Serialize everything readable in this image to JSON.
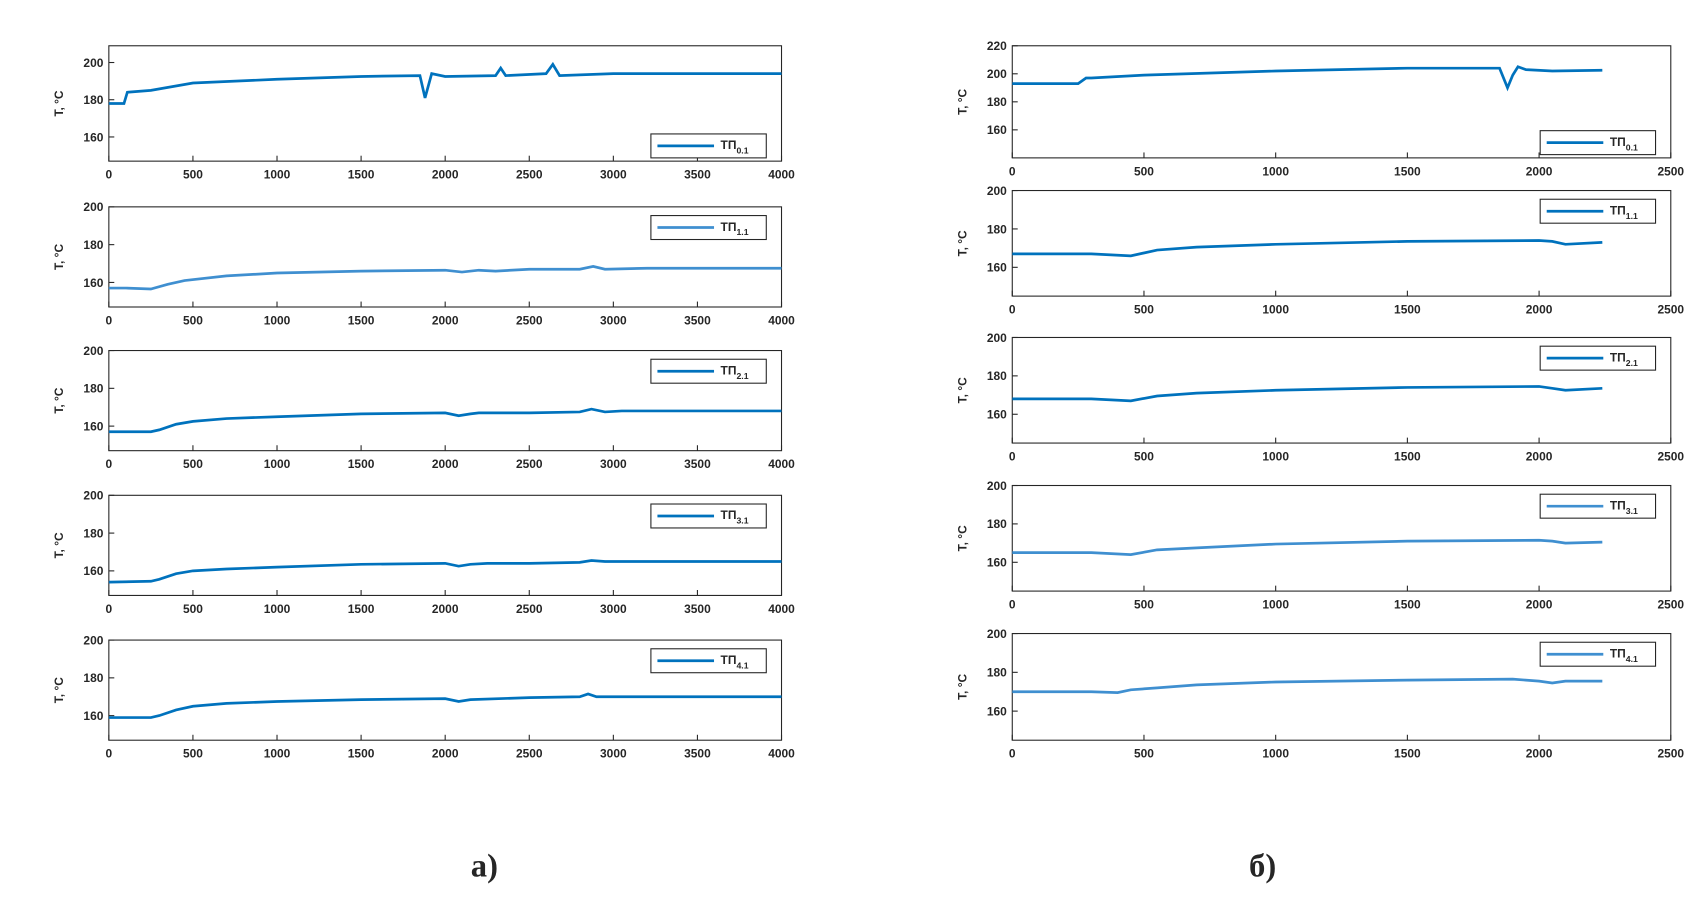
{
  "chart_data": [
    {
      "type": "line",
      "ylabel": "T, °C",
      "xlim": [
        0,
        4000
      ],
      "xticks": [
        0,
        500,
        1000,
        1500,
        2000,
        2500,
        3000,
        3500,
        4000
      ],
      "ylim": [
        147,
        209
      ],
      "yticks": [
        160,
        180,
        200
      ],
      "legend": "lower right",
      "series": [
        {
          "name": "ТП",
          "subscript": "0.1",
          "color": "#0072bd",
          "x": [
            0,
            90,
            110,
            250,
            500,
            1000,
            1500,
            1850,
            1880,
            1920,
            2000,
            2300,
            2330,
            2360,
            2600,
            2640,
            2680,
            3000,
            4000
          ],
          "values": [
            178,
            178,
            184,
            185,
            189,
            191,
            192.5,
            193,
            181,
            194,
            192.5,
            193,
            197,
            193,
            194,
            199,
            193,
            194,
            194
          ]
        }
      ]
    },
    {
      "type": "line",
      "ylabel": "T, °C",
      "xlim": [
        0,
        4000
      ],
      "xticks": [
        0,
        500,
        1000,
        1500,
        2000,
        2500,
        3000,
        3500,
        4000
      ],
      "ylim": [
        147,
        200
      ],
      "yticks": [
        160,
        180,
        200
      ],
      "legend": "upper right",
      "series": [
        {
          "name": "ТП",
          "subscript": "1.1",
          "color": "#3f8fd0",
          "x": [
            0,
            100,
            250,
            350,
            450,
            700,
            1000,
            1500,
            2000,
            2100,
            2200,
            2300,
            2500,
            2800,
            2880,
            2950,
            3200,
            4000
          ],
          "values": [
            157,
            157,
            156.5,
            159,
            161,
            163.5,
            165,
            166,
            166.5,
            165.5,
            166.5,
            166,
            167,
            167,
            168.5,
            167,
            167.5,
            167.5
          ]
        }
      ]
    },
    {
      "type": "line",
      "ylabel": "T, °C",
      "xlim": [
        0,
        4000
      ],
      "xticks": [
        0,
        500,
        1000,
        1500,
        2000,
        2500,
        3000,
        3500,
        4000
      ],
      "ylim": [
        147,
        200
      ],
      "yticks": [
        160,
        180,
        200
      ],
      "legend": "upper right",
      "series": [
        {
          "name": "ТП",
          "subscript": "2.1",
          "color": "#0072bd",
          "x": [
            0,
            250,
            300,
            400,
            500,
            700,
            1000,
            1500,
            2000,
            2080,
            2150,
            2200,
            2500,
            2800,
            2870,
            2950,
            3050,
            3300,
            4000
          ],
          "values": [
            157,
            157,
            158,
            161,
            162.5,
            164,
            165,
            166.5,
            167,
            165.5,
            166.5,
            167,
            167,
            167.5,
            169,
            167.5,
            168,
            168,
            168
          ]
        }
      ]
    },
    {
      "type": "line",
      "ylabel": "T, °C",
      "xlim": [
        0,
        4000
      ],
      "xticks": [
        0,
        500,
        1000,
        1500,
        2000,
        2500,
        3000,
        3500,
        4000
      ],
      "ylim": [
        147,
        200
      ],
      "yticks": [
        160,
        180,
        200
      ],
      "legend": "upper right",
      "series": [
        {
          "name": "ТП",
          "subscript": "3.1",
          "color": "#0072bd",
          "x": [
            0,
            250,
            300,
            400,
            500,
            700,
            1000,
            1500,
            2000,
            2080,
            2150,
            2250,
            2500,
            2800,
            2870,
            2950,
            4000
          ],
          "values": [
            154,
            154.5,
            155.5,
            158.5,
            160,
            161,
            162,
            163.5,
            164,
            162.5,
            163.5,
            164,
            164,
            164.5,
            165.5,
            165,
            165
          ]
        }
      ]
    },
    {
      "type": "line",
      "ylabel": "T, °C",
      "xlim": [
        0,
        4000
      ],
      "xticks": [
        0,
        500,
        1000,
        1500,
        2000,
        2500,
        3000,
        3500,
        4000
      ],
      "ylim": [
        147,
        200
      ],
      "yticks": [
        160,
        180,
        200
      ],
      "legend": "upper right",
      "series": [
        {
          "name": "ТП",
          "subscript": "4.1",
          "color": "#0072bd",
          "x": [
            0,
            250,
            300,
            400,
            500,
            700,
            1000,
            1500,
            2000,
            2080,
            2150,
            2500,
            2800,
            2850,
            2900,
            3200,
            4000
          ],
          "values": [
            159,
            159,
            160,
            163,
            165,
            166.5,
            167.5,
            168.5,
            169,
            167.5,
            168.5,
            169.5,
            170,
            171.5,
            170,
            170,
            170
          ]
        }
      ]
    },
    {
      "type": "line",
      "ylabel": "T, °C",
      "xlim": [
        0,
        2500
      ],
      "xticks": [
        0,
        500,
        1000,
        1500,
        2000,
        2500
      ],
      "ylim": [
        140,
        220
      ],
      "yticks": [
        160,
        180,
        200,
        220
      ],
      "legend": "lower right",
      "series": [
        {
          "name": "ТП",
          "subscript": "0.1",
          "color": "#0072bd",
          "x": [
            0,
            250,
            280,
            300,
            500,
            1000,
            1500,
            1850,
            1880,
            1900,
            1920,
            1950,
            2050,
            2240
          ],
          "values": [
            193,
            193,
            197,
            197,
            199,
            202,
            204,
            204,
            190,
            199,
            205,
            203,
            202,
            202.5
          ]
        }
      ]
    },
    {
      "type": "line",
      "ylabel": "T, °C",
      "xlim": [
        0,
        2500
      ],
      "xticks": [
        0,
        500,
        1000,
        1500,
        2000,
        2500
      ],
      "ylim": [
        145,
        200
      ],
      "yticks": [
        160,
        180,
        200
      ],
      "legend": "upper right",
      "series": [
        {
          "name": "ТП",
          "subscript": "1.1",
          "color": "#0072bd",
          "x": [
            0,
            300,
            450,
            550,
            700,
            1000,
            1500,
            2000,
            2050,
            2100,
            2240
          ],
          "values": [
            167,
            167,
            166,
            169,
            170.5,
            172,
            173.5,
            174,
            173.5,
            172,
            173
          ]
        }
      ]
    },
    {
      "type": "line",
      "ylabel": "T, °C",
      "xlim": [
        0,
        2500
      ],
      "xticks": [
        0,
        500,
        1000,
        1500,
        2000,
        2500
      ],
      "ylim": [
        145,
        200
      ],
      "yticks": [
        160,
        180,
        200
      ],
      "legend": "upper right",
      "series": [
        {
          "name": "ТП",
          "subscript": "2.1",
          "color": "#0072bd",
          "x": [
            0,
            300,
            450,
            550,
            700,
            1000,
            1500,
            2000,
            2050,
            2100,
            2240
          ],
          "values": [
            168,
            168,
            167,
            169.5,
            171,
            172.5,
            174,
            174.5,
            173.5,
            172.5,
            173.5
          ]
        }
      ]
    },
    {
      "type": "line",
      "ylabel": "T, °C",
      "xlim": [
        0,
        2500
      ],
      "xticks": [
        0,
        500,
        1000,
        1500,
        2000,
        2500
      ],
      "ylim": [
        145,
        200
      ],
      "yticks": [
        160,
        180,
        200
      ],
      "legend": "upper right",
      "series": [
        {
          "name": "ТП",
          "subscript": "3.1",
          "color": "#3f8fd0",
          "x": [
            0,
            300,
            450,
            550,
            700,
            1000,
            1500,
            2000,
            2050,
            2100,
            2240
          ],
          "values": [
            165,
            165,
            164,
            166.5,
            167.5,
            169.5,
            171,
            171.5,
            171,
            170,
            170.5
          ]
        }
      ]
    },
    {
      "type": "line",
      "ylabel": "T, °C",
      "xlim": [
        0,
        2500
      ],
      "xticks": [
        0,
        500,
        1000,
        1500,
        2000,
        2500
      ],
      "ylim": [
        145,
        200
      ],
      "yticks": [
        160,
        180,
        200
      ],
      "legend": "upper right",
      "series": [
        {
          "name": "ТП",
          "subscript": "4.1",
          "color": "#3f8fd0",
          "x": [
            0,
            300,
            400,
            450,
            550,
            700,
            1000,
            1500,
            1900,
            2000,
            2050,
            2100,
            2240
          ],
          "values": [
            170,
            170,
            169.5,
            171,
            172,
            173.5,
            175,
            176,
            176.5,
            175.5,
            174.5,
            175.5,
            175.5
          ]
        }
      ]
    }
  ],
  "captions": [
    "а)",
    "б)"
  ]
}
